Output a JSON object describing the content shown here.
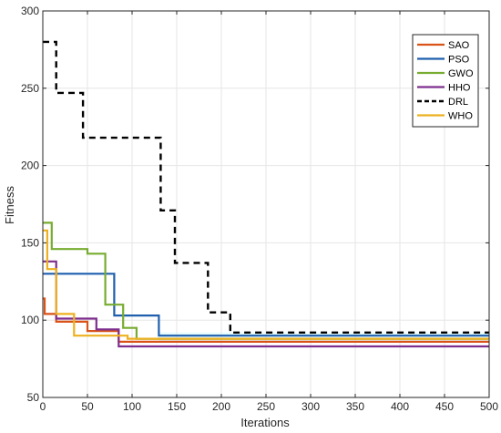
{
  "chart_data": {
    "type": "line",
    "title": "",
    "xlabel": "Iterations",
    "ylabel": "Fitness",
    "xlim": [
      0,
      500
    ],
    "ylim": [
      50,
      300
    ],
    "xticks": [
      0,
      50,
      100,
      150,
      200,
      250,
      300,
      350,
      400,
      450,
      500
    ],
    "yticks": [
      50,
      100,
      150,
      200,
      250,
      300
    ],
    "grid": true,
    "legend_position": "top-right",
    "series": [
      {
        "name": "SAO",
        "color": "#d95319",
        "dashed": false,
        "x": [
          0,
          2,
          2,
          15,
          15,
          50,
          50,
          85,
          85,
          500
        ],
        "y": [
          114,
          114,
          104,
          104,
          99,
          99,
          93,
          93,
          86,
          86
        ]
      },
      {
        "name": "PSO",
        "color": "#1f5fae",
        "dashed": false,
        "x": [
          0,
          80,
          80,
          130,
          130,
          500
        ],
        "y": [
          130,
          130,
          103,
          103,
          90,
          90
        ]
      },
      {
        "name": "GWO",
        "color": "#77ac30",
        "dashed": false,
        "x": [
          0,
          10,
          10,
          50,
          50,
          70,
          70,
          90,
          90,
          105,
          105,
          500
        ],
        "y": [
          163,
          163,
          146,
          146,
          143,
          143,
          110,
          110,
          95,
          95,
          88,
          88
        ]
      },
      {
        "name": "HHO",
        "color": "#7e2f8e",
        "dashed": false,
        "x": [
          0,
          15,
          15,
          60,
          60,
          85,
          85,
          500
        ],
        "y": [
          138,
          138,
          101,
          101,
          94,
          94,
          83,
          83
        ]
      },
      {
        "name": "DRL",
        "color": "#000000",
        "dashed": true,
        "x": [
          0,
          15,
          15,
          45,
          45,
          132,
          132,
          148,
          148,
          185,
          185,
          210,
          210,
          500
        ],
        "y": [
          280,
          280,
          247,
          247,
          218,
          218,
          171,
          171,
          137,
          137,
          105,
          105,
          92,
          92
        ]
      },
      {
        "name": "WHO",
        "color": "#edb120",
        "dashed": false,
        "x": [
          0,
          5,
          5,
          15,
          15,
          35,
          35,
          95,
          95,
          500
        ],
        "y": [
          158,
          158,
          133,
          133,
          104,
          104,
          90,
          90,
          88,
          88
        ]
      }
    ]
  }
}
